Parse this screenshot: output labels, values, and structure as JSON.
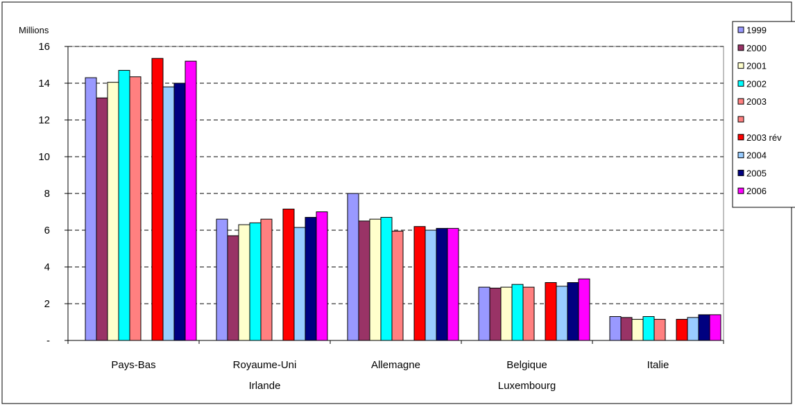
{
  "chart_data": {
    "type": "bar",
    "ylabel": "Millions",
    "ylim": [
      0,
      16
    ],
    "yticks": [
      0,
      2,
      4,
      6,
      8,
      10,
      12,
      14,
      16
    ],
    "ytick_labels": [
      "-",
      "2",
      "4",
      "6",
      "8",
      "10",
      "12",
      "14",
      "16"
    ],
    "grid": true,
    "legend_position": "right",
    "categories": [
      [
        "Pays-Bas"
      ],
      [
        "Royaume-Uni",
        "Irlande"
      ],
      [
        "Allemagne"
      ],
      [
        "Belgique",
        "Luxembourg"
      ],
      [
        "Italie"
      ]
    ],
    "series": [
      {
        "name": "1999",
        "color": "#9999FF",
        "values": [
          14.3,
          6.6,
          8.0,
          2.9,
          1.3
        ]
      },
      {
        "name": "2000",
        "color": "#993366",
        "values": [
          13.2,
          5.7,
          6.5,
          2.85,
          1.25
        ]
      },
      {
        "name": "2001",
        "color": "#FFFFCC",
        "values": [
          14.05,
          6.3,
          6.6,
          2.9,
          1.15
        ]
      },
      {
        "name": "2002",
        "color": "#00FFFF",
        "values": [
          14.7,
          6.4,
          6.7,
          3.05,
          1.3
        ]
      },
      {
        "name": "2003",
        "color": "#FF8080",
        "values": [
          14.35,
          6.6,
          5.95,
          2.9,
          1.15
        ]
      },
      {
        "name": "",
        "color": "#FF8080",
        "values": [
          null,
          null,
          null,
          null,
          null
        ]
      },
      {
        "name": "2003 rév",
        "color": "#FF0000",
        "values": [
          15.35,
          7.15,
          6.2,
          3.15,
          1.15
        ]
      },
      {
        "name": "2004",
        "color": "#99CCFF",
        "values": [
          13.8,
          6.15,
          6.0,
          2.95,
          1.25
        ]
      },
      {
        "name": "2005",
        "color": "#000080",
        "values": [
          14.0,
          6.7,
          6.1,
          3.15,
          1.4
        ]
      },
      {
        "name": "2006",
        "color": "#FF00FF",
        "values": [
          15.2,
          7.0,
          6.1,
          3.35,
          1.4
        ]
      }
    ]
  }
}
